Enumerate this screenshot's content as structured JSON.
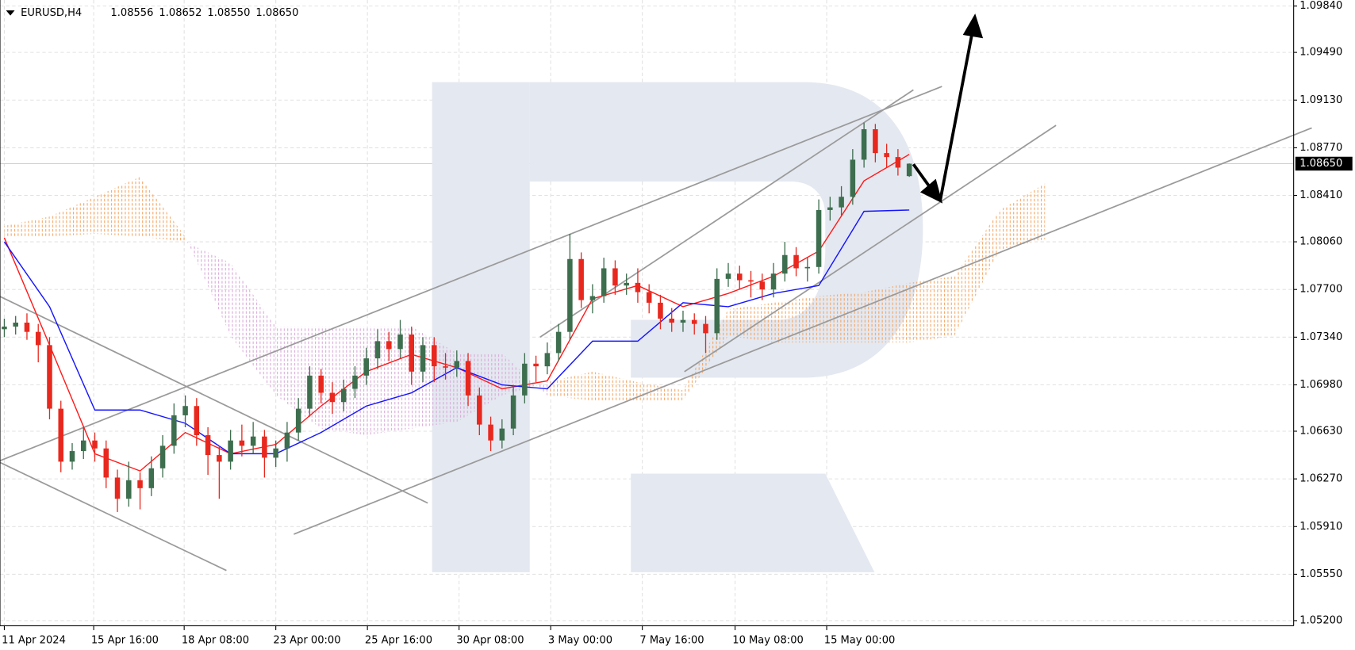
{
  "chart_data": {
    "type": "candlestick",
    "symbol": "EURUSD,H4",
    "last_bar_labels": [
      "1.08556",
      "1.08652",
      "1.08550",
      "1.08650"
    ],
    "current_price": {
      "value": 1.0865,
      "label": "1.08650"
    },
    "up_color": "#3d6e4e",
    "down_color": "#e8281e",
    "tenkan_color": "#ff1a1a",
    "kijun_color": "#1414ff",
    "cloud_up_color": "#f4a460",
    "cloud_down_color": "#d8a8d8",
    "grid": true,
    "ylim": [
      1.052,
      1.0984
    ],
    "yticks": [
      {
        "value": 1.0984,
        "label": "1.09840"
      },
      {
        "value": 1.0949,
        "label": "1.09490"
      },
      {
        "value": 1.0913,
        "label": "1.09130"
      },
      {
        "value": 1.0877,
        "label": "1.08770"
      },
      {
        "value": 1.0841,
        "label": "1.08410"
      },
      {
        "value": 1.0806,
        "label": "1.08060"
      },
      {
        "value": 1.077,
        "label": "1.07700"
      },
      {
        "value": 1.0734,
        "label": "1.07340"
      },
      {
        "value": 1.0698,
        "label": "1.06980"
      },
      {
        "value": 1.0663,
        "label": "1.06630"
      },
      {
        "value": 1.0627,
        "label": "1.06270"
      },
      {
        "value": 1.0591,
        "label": "1.05910"
      },
      {
        "value": 1.0555,
        "label": "1.05550"
      },
      {
        "value": 1.052,
        "label": "1.05200"
      }
    ],
    "xlim": [
      -0.4,
      114
    ],
    "xticks": [
      {
        "value": 0,
        "label": "11 Apr 2024"
      },
      {
        "value": 7.9,
        "label": "15 Apr 16:00"
      },
      {
        "value": 15.9,
        "label": "18 Apr 08:00"
      },
      {
        "value": 24,
        "label": "23 Apr 00:00"
      },
      {
        "value": 32.1,
        "label": "25 Apr 16:00"
      },
      {
        "value": 40.2,
        "label": "30 Apr 08:00"
      },
      {
        "value": 48.3,
        "label": "3 May 00:00"
      },
      {
        "value": 56.4,
        "label": "7 May 16:00"
      },
      {
        "value": 64.6,
        "label": "10 May 08:00"
      },
      {
        "value": 72.7,
        "label": "15 May 00:00"
      }
    ],
    "candles": [
      [
        1.074,
        1.0748,
        1.0734,
        1.0742
      ],
      [
        1.0742,
        1.075,
        1.0736,
        1.0745
      ],
      [
        1.0745,
        1.0752,
        1.0732,
        1.0738
      ],
      [
        1.0738,
        1.0744,
        1.0715,
        1.0728
      ],
      [
        1.0728,
        1.0734,
        1.0672,
        1.068
      ],
      [
        1.068,
        1.0686,
        1.0632,
        1.064
      ],
      [
        1.064,
        1.0654,
        1.0634,
        1.0648
      ],
      [
        1.0648,
        1.0666,
        1.0642,
        1.0656
      ],
      [
        1.0656,
        1.0662,
        1.064,
        1.065
      ],
      [
        1.065,
        1.0656,
        1.062,
        1.0628
      ],
      [
        1.0628,
        1.0634,
        1.0602,
        1.0612
      ],
      [
        1.0612,
        1.064,
        1.0606,
        1.0626
      ],
      [
        1.0626,
        1.0632,
        1.0604,
        1.062
      ],
      [
        1.062,
        1.0644,
        1.0614,
        1.0635
      ],
      [
        1.0635,
        1.066,
        1.0628,
        1.0652
      ],
      [
        1.0652,
        1.0684,
        1.0646,
        1.0675
      ],
      [
        1.0675,
        1.069,
        1.0666,
        1.0682
      ],
      [
        1.0682,
        1.0688,
        1.0652,
        1.066
      ],
      [
        1.066,
        1.0666,
        1.063,
        1.0645
      ],
      [
        1.0645,
        1.0652,
        1.0612,
        1.064
      ],
      [
        1.064,
        1.0664,
        1.0634,
        1.0656
      ],
      [
        1.0656,
        1.0668,
        1.0644,
        1.0652
      ],
      [
        1.0652,
        1.067,
        1.0646,
        1.0659
      ],
      [
        1.0659,
        1.0664,
        1.0628,
        1.0643
      ],
      [
        1.0643,
        1.0656,
        1.0636,
        1.065
      ],
      [
        1.065,
        1.067,
        1.064,
        1.0662
      ],
      [
        1.0662,
        1.0688,
        1.0656,
        1.068
      ],
      [
        1.068,
        1.0712,
        1.0674,
        1.0705
      ],
      [
        1.0705,
        1.071,
        1.0684,
        1.0692
      ],
      [
        1.0692,
        1.07,
        1.0676,
        1.0685
      ],
      [
        1.0685,
        1.0702,
        1.0678,
        1.0695
      ],
      [
        1.0695,
        1.0712,
        1.0688,
        1.0705
      ],
      [
        1.0705,
        1.0726,
        1.0698,
        1.0718
      ],
      [
        1.0718,
        1.074,
        1.071,
        1.0731
      ],
      [
        1.0731,
        1.0738,
        1.0716,
        1.0725
      ],
      [
        1.0725,
        1.0747,
        1.0718,
        1.0736
      ],
      [
        1.0736,
        1.0742,
        1.0698,
        1.0708
      ],
      [
        1.0708,
        1.0734,
        1.07,
        1.0728
      ],
      [
        1.0728,
        1.0734,
        1.07,
        1.0712
      ],
      [
        1.0712,
        1.0722,
        1.0702,
        1.0711
      ],
      [
        1.0711,
        1.0724,
        1.0704,
        1.0716
      ],
      [
        1.0716,
        1.0722,
        1.0682,
        1.069
      ],
      [
        1.069,
        1.0696,
        1.066,
        1.0668
      ],
      [
        1.0668,
        1.0674,
        1.0648,
        1.0656
      ],
      [
        1.0656,
        1.0672,
        1.065,
        1.0665
      ],
      [
        1.0665,
        1.0698,
        1.066,
        1.069
      ],
      [
        1.069,
        1.0722,
        1.0684,
        1.0714
      ],
      [
        1.0714,
        1.072,
        1.07,
        1.0712
      ],
      [
        1.0712,
        1.073,
        1.0706,
        1.0722
      ],
      [
        1.0722,
        1.0744,
        1.0716,
        1.0738
      ],
      [
        1.0738,
        1.0812,
        1.0732,
        1.0793
      ],
      [
        1.0793,
        1.0798,
        1.0756,
        1.0762
      ],
      [
        1.0762,
        1.0774,
        1.0752,
        1.0765
      ],
      [
        1.0765,
        1.0794,
        1.076,
        1.0786
      ],
      [
        1.0786,
        1.0792,
        1.0766,
        1.0773
      ],
      [
        1.0773,
        1.0782,
        1.0766,
        1.0775
      ],
      [
        1.0775,
        1.0786,
        1.076,
        1.0768
      ],
      [
        1.0768,
        1.0774,
        1.0752,
        1.076
      ],
      [
        1.076,
        1.0766,
        1.074,
        1.0748
      ],
      [
        1.0748,
        1.0756,
        1.0738,
        1.0745
      ],
      [
        1.0745,
        1.0754,
        1.0738,
        1.0747
      ],
      [
        1.0747,
        1.0752,
        1.0736,
        1.0744
      ],
      [
        1.0744,
        1.075,
        1.0722,
        1.0737
      ],
      [
        1.0737,
        1.0786,
        1.0732,
        1.0778
      ],
      [
        1.0778,
        1.079,
        1.0772,
        1.0782
      ],
      [
        1.0782,
        1.0788,
        1.077,
        1.0777
      ],
      [
        1.0777,
        1.0784,
        1.0764,
        1.0776
      ],
      [
        1.0776,
        1.0782,
        1.0762,
        1.077
      ],
      [
        1.077,
        1.079,
        1.0764,
        1.0782
      ],
      [
        1.0782,
        1.0806,
        1.0776,
        1.0796
      ],
      [
        1.0796,
        1.0802,
        1.078,
        1.0786
      ],
      [
        1.0786,
        1.0794,
        1.0776,
        1.0787
      ],
      [
        1.0787,
        1.0838,
        1.0782,
        1.083
      ],
      [
        1.083,
        1.084,
        1.0822,
        1.0832
      ],
      [
        1.0832,
        1.0848,
        1.0826,
        1.084
      ],
      [
        1.084,
        1.0876,
        1.0834,
        1.0868
      ],
      [
        1.0868,
        1.0896,
        1.0862,
        1.0891
      ],
      [
        1.0891,
        1.0895,
        1.0866,
        1.0873
      ],
      [
        1.0873,
        1.088,
        1.0862,
        1.087
      ],
      [
        1.087,
        1.0876,
        1.0856,
        1.0862
      ],
      [
        1.08556,
        1.08652,
        1.0855,
        1.0865
      ]
    ],
    "indicator_x": [
      0,
      4,
      8,
      12,
      16,
      20,
      24,
      28,
      32,
      36,
      40,
      44,
      48,
      52,
      56,
      60,
      64,
      68,
      72,
      76,
      80
    ],
    "tenkan": [
      1.0809,
      1.0728,
      1.0646,
      1.0633,
      1.0662,
      1.0646,
      1.0653,
      1.0682,
      1.0708,
      1.0721,
      1.0711,
      1.0695,
      1.0701,
      1.0763,
      1.0773,
      1.0757,
      1.0767,
      1.078,
      1.0799,
      1.0852,
      1.0872
    ],
    "kijun": [
      1.0806,
      1.0757,
      1.0679,
      1.0679,
      1.0669,
      1.0646,
      1.0646,
      1.0662,
      1.0682,
      1.0692,
      1.0711,
      1.0698,
      1.0695,
      1.0731,
      1.0731,
      1.076,
      1.0757,
      1.0767,
      1.0773,
      1.0829,
      1.083
    ],
    "cloud_x": [
      0,
      4,
      8,
      12,
      16,
      20,
      24,
      28,
      32,
      36,
      40,
      44,
      48,
      52,
      56,
      60,
      64,
      68,
      72,
      76,
      80,
      84,
      88,
      92
    ],
    "span_a": [
      1.0818,
      1.0825,
      1.084,
      1.0855,
      1.081,
      1.0735,
      1.069,
      1.0665,
      1.066,
      1.0665,
      1.067,
      1.069,
      1.07,
      1.0708,
      1.07,
      1.0694,
      1.0755,
      1.076,
      1.0765,
      1.0768,
      1.0775,
      1.078,
      1.083,
      1.085
    ],
    "span_b": [
      1.081,
      1.081,
      1.0812,
      1.081,
      1.0806,
      1.079,
      1.0742,
      1.0742,
      1.0742,
      1.0742,
      1.0722,
      1.0722,
      1.069,
      1.0686,
      1.0686,
      1.0686,
      1.0735,
      1.073,
      1.073,
      1.073,
      1.073,
      1.0735,
      1.08,
      1.0808
    ]
  }
}
